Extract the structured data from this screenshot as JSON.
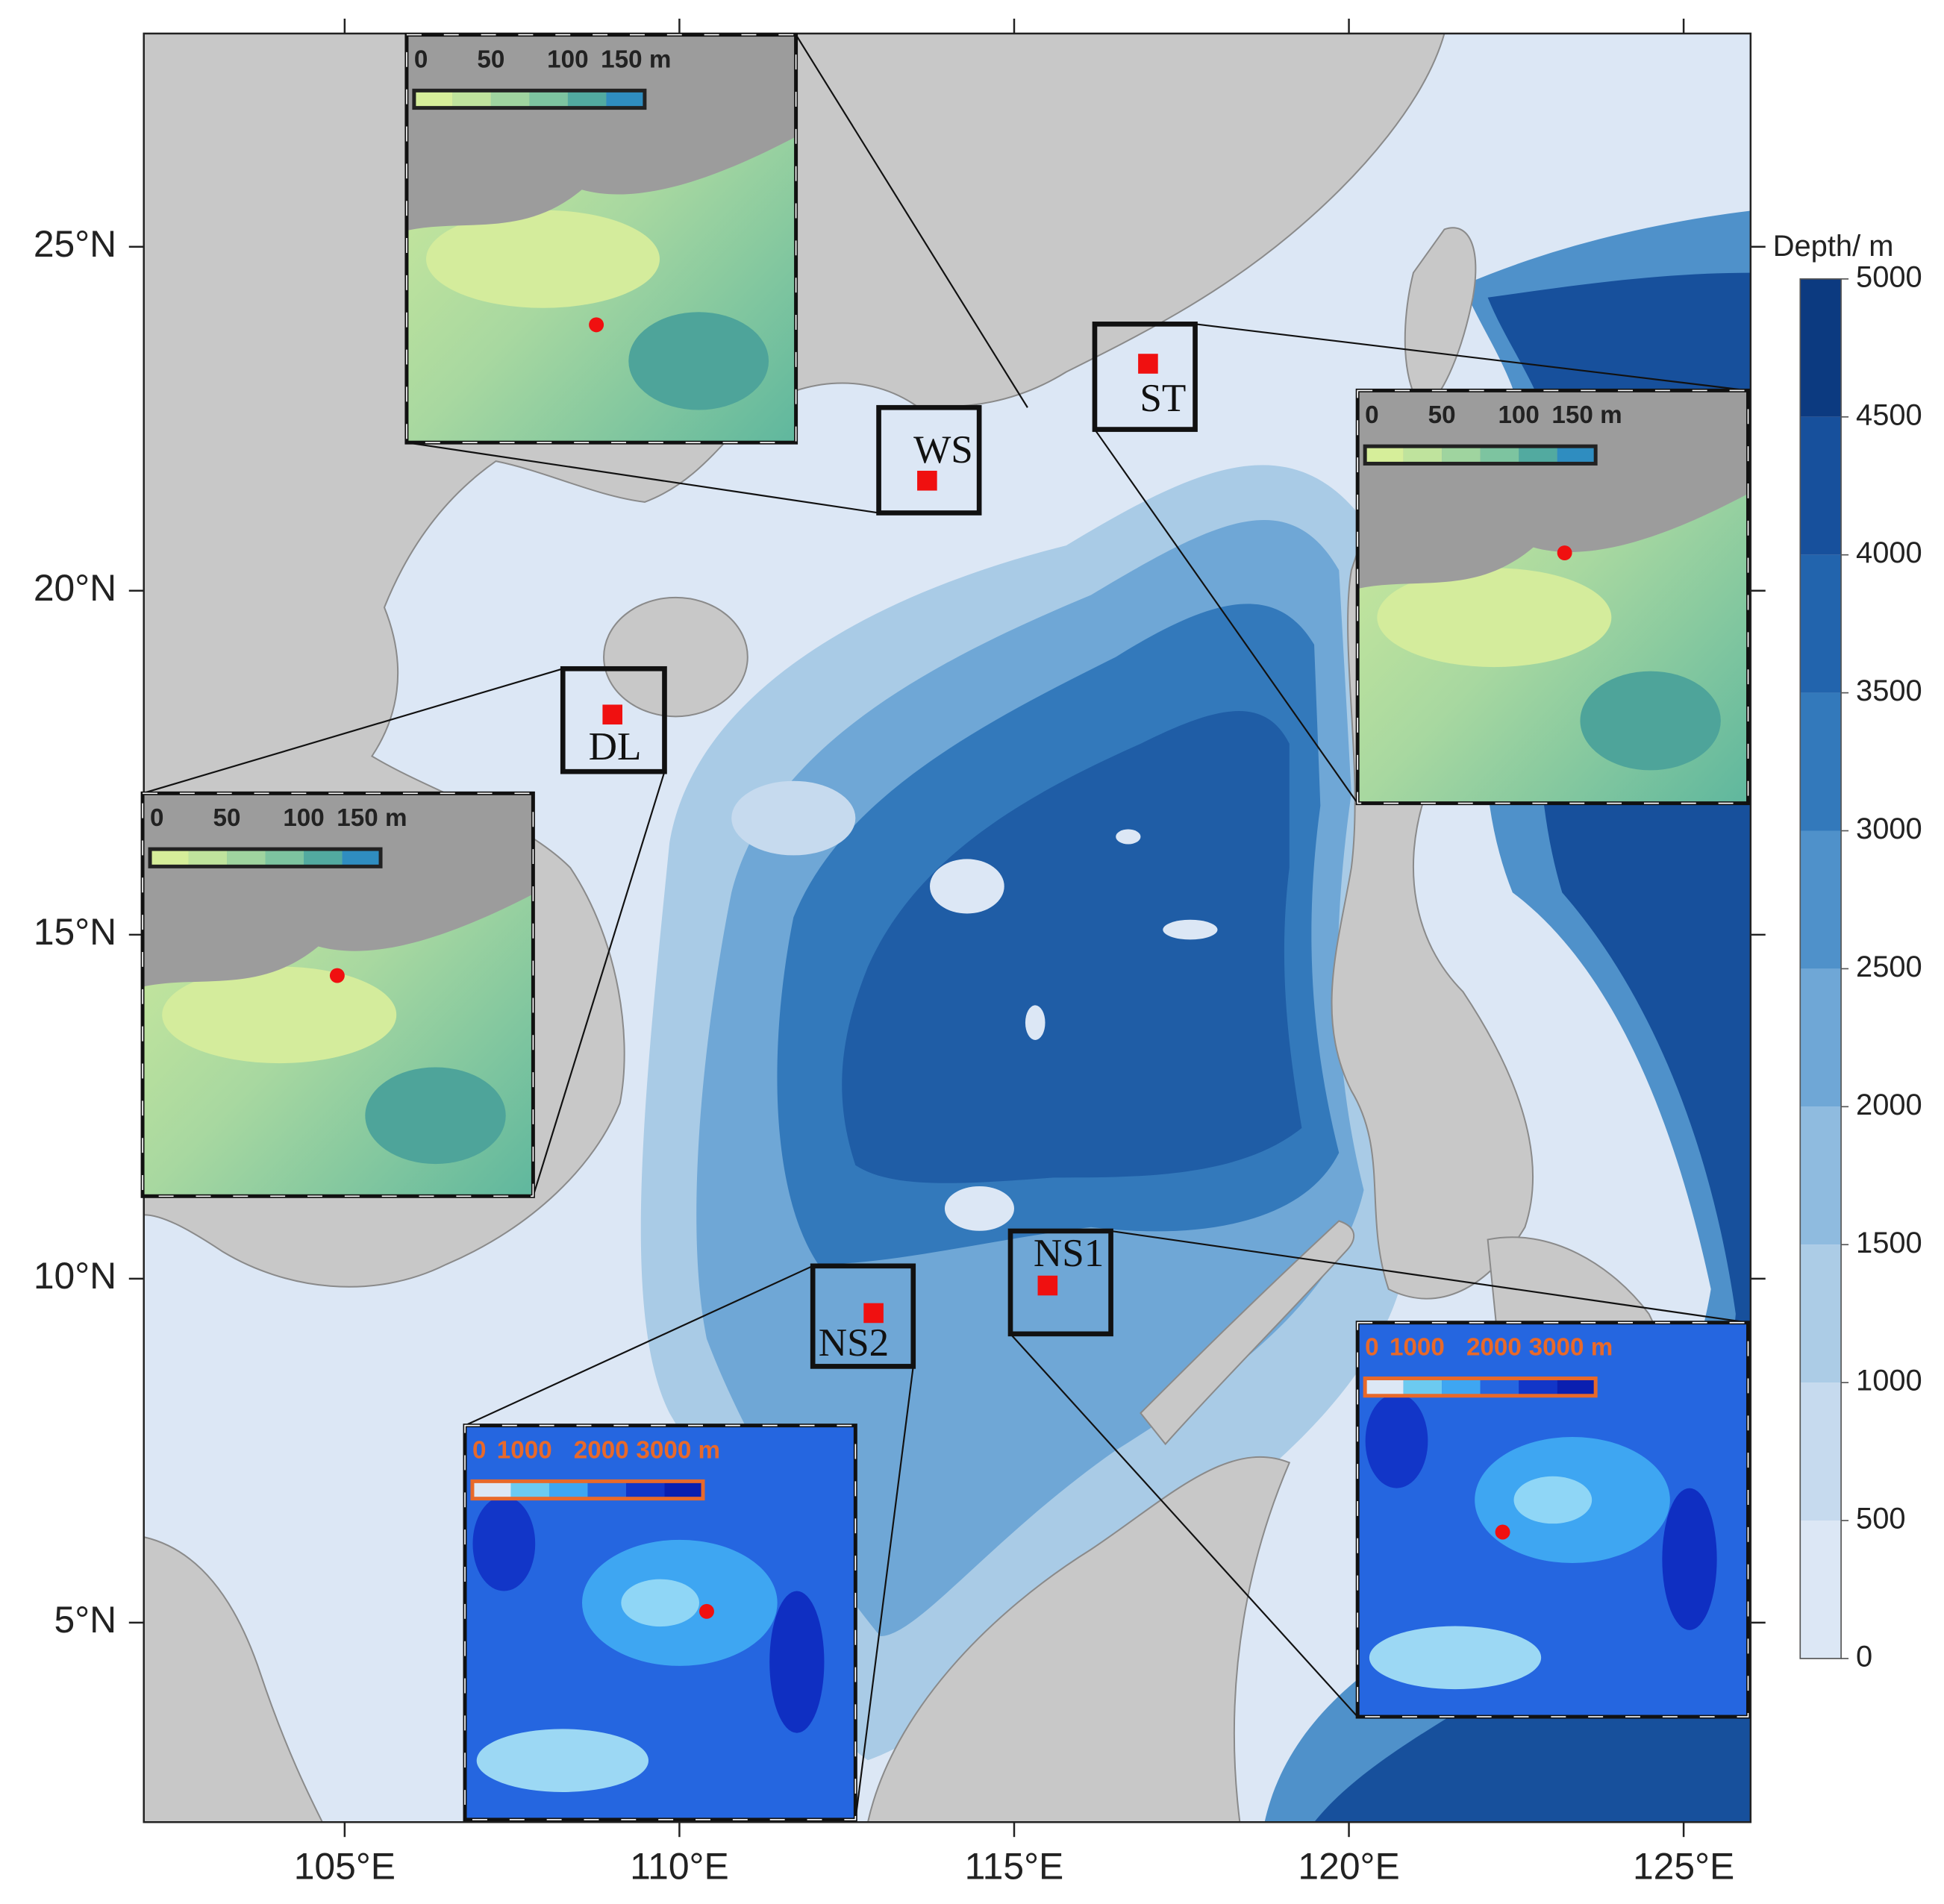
{
  "map": {
    "lonlim": [
      102,
      126
    ],
    "latlim": [
      2.1,
      28.1
    ],
    "lon_ticks": [
      {
        "value": 105,
        "label": "105°E"
      },
      {
        "value": 110,
        "label": "110°E"
      },
      {
        "value": 115,
        "label": "115°E"
      },
      {
        "value": 120,
        "label": "120°E"
      },
      {
        "value": 125,
        "label": "125°E"
      }
    ],
    "lat_ticks": [
      {
        "value": 5,
        "label": "5°N"
      },
      {
        "value": 10,
        "label": "10°N"
      },
      {
        "value": 15,
        "label": "15°N"
      },
      {
        "value": 20,
        "label": "20°N"
      },
      {
        "value": 25,
        "label": "25°N"
      }
    ],
    "colorbar": {
      "title": "Depth/ m",
      "ticks": [
        0,
        500,
        1000,
        1500,
        2000,
        2500,
        3000,
        3500,
        4000,
        4500,
        5000
      ],
      "colors": [
        "#dce7f5",
        "#c6daee",
        "#accce6",
        "#8fbbdf",
        "#6fa7d6",
        "#4f91ca",
        "#3379bb",
        "#2264ad",
        "#17509c",
        "#0c3a80"
      ]
    },
    "sites": [
      {
        "label": "WS",
        "lon": 113.7,
        "lat": 21.6,
        "inset_scale": [
          "0",
          "50",
          "100",
          "150 m"
        ]
      },
      {
        "label": "ST",
        "lon": 117.0,
        "lat": 23.3,
        "inset_scale": [
          "0",
          "50",
          "100",
          "150 m"
        ]
      },
      {
        "label": "DL",
        "lon": 109.0,
        "lat": 18.2,
        "inset_scale": [
          "0",
          "50",
          "100",
          "150 m"
        ]
      },
      {
        "label": "NS2",
        "lon": 112.9,
        "lat": 9.5,
        "inset_scale": [
          "0",
          "1000",
          "2000",
          "3000 m"
        ]
      },
      {
        "label": "NS1",
        "lon": 115.5,
        "lat": 9.9,
        "inset_scale": [
          "0",
          "1000",
          "2000",
          "3000 m"
        ]
      }
    ]
  }
}
